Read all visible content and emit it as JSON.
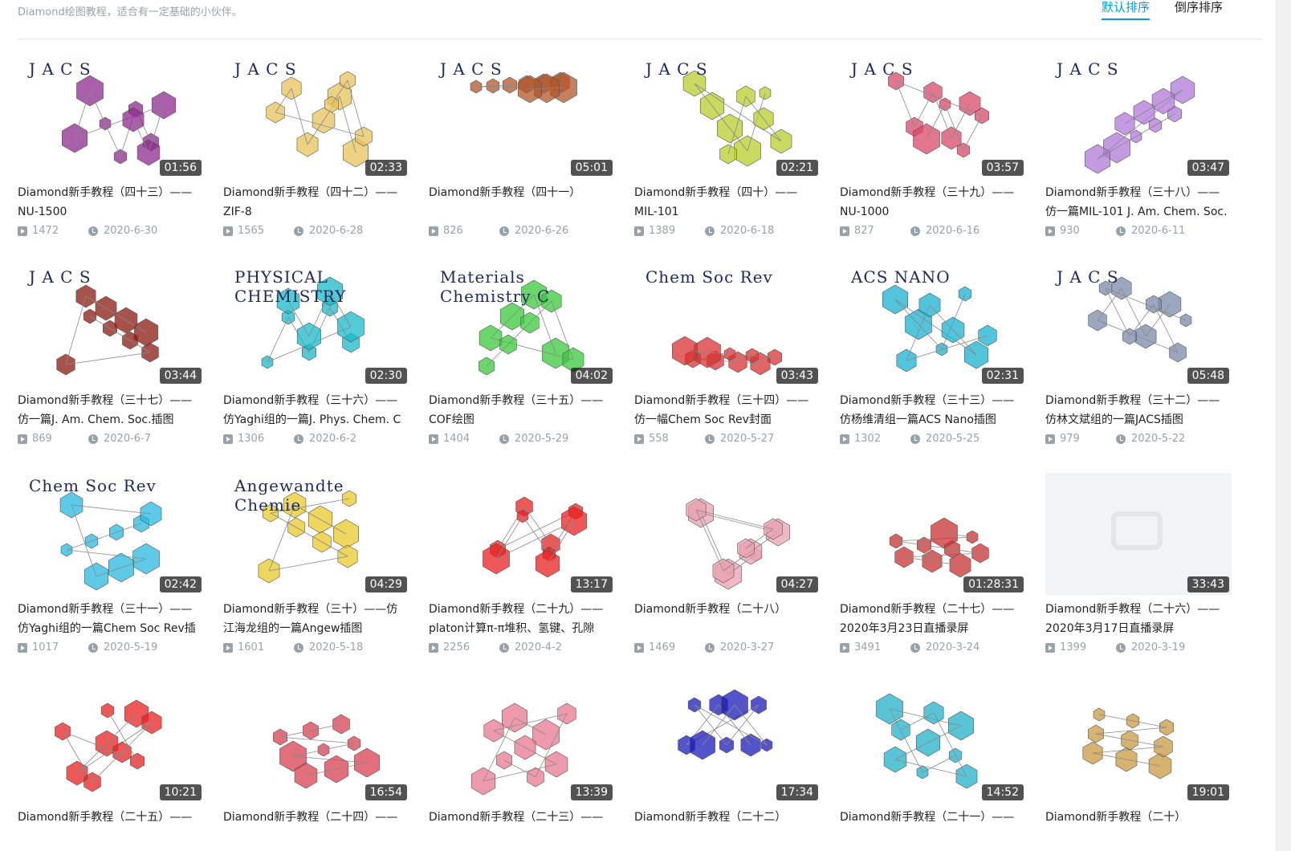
{
  "header": {
    "description": "Diamond绘图教程，适合有一定基础的小伙伴。",
    "sort_default": "默认排序",
    "sort_reverse": "倒序排序"
  },
  "colors": {
    "accent": "#00a1d6",
    "meta_gray": "#99a2aa",
    "duration_bg": "#000000"
  },
  "videos": [
    {
      "thumb_label": "J A C S",
      "duration": "01:56",
      "title_l1": "Diamond新手教程（四十三）——",
      "title_l2": "NU-1500",
      "views": "1472",
      "date": "2020-6-30",
      "accent": "#8e2a8e"
    },
    {
      "thumb_label": "J A C S",
      "duration": "02:33",
      "title_l1": "Diamond新手教程（四十二）——",
      "title_l2": "ZIF-8",
      "views": "1565",
      "date": "2020-6-28",
      "accent": "#e8c35a"
    },
    {
      "thumb_label": "J A C S",
      "duration": "05:01",
      "title_l1": "Diamond新手教程（四十一）",
      "title_l2": "",
      "views": "826",
      "date": "2020-6-26",
      "accent": "#b0562a"
    },
    {
      "thumb_label": "J A C S",
      "duration": "02:21",
      "title_l1": "Diamond新手教程（四十）——",
      "title_l2": "MIL-101",
      "views": "1389",
      "date": "2020-6-18",
      "accent": "#b8cc2a"
    },
    {
      "thumb_label": "J A C S",
      "duration": "03:57",
      "title_l1": "Diamond新手教程（三十九）——",
      "title_l2": "NU-1000",
      "views": "827",
      "date": "2020-6-16",
      "accent": "#d8486a"
    },
    {
      "thumb_label": "J A C S",
      "duration": "03:47",
      "title_l1": "Diamond新手教程（三十八）——",
      "title_l2": "仿一篇MIL-101 J. Am. Chem. Soc.",
      "views": "930",
      "date": "2020-6-11",
      "accent": "#b07ad8"
    },
    {
      "thumb_label": "J A C S",
      "duration": "03:44",
      "title_l1": "Diamond新手教程（三十七）——",
      "title_l2": "仿一篇J. Am. Chem. Soc.插图",
      "views": "869",
      "date": "2020-6-7",
      "accent": "#8a1a10"
    },
    {
      "thumb_label": "PHYSICAL CHEMISTRY",
      "duration": "02:30",
      "title_l1": "Diamond新手教程（三十六）——",
      "title_l2": "仿Yaghi组的一篇J. Phys. Chem. C",
      "views": "1306",
      "date": "2020-6-2",
      "accent": "#1ab8c8"
    },
    {
      "thumb_label": "Materials Chemistry C",
      "duration": "04:02",
      "title_l1": "Diamond新手教程（三十五）——",
      "title_l2": "COF绘图",
      "views": "1404",
      "date": "2020-5-29",
      "accent": "#38c83a"
    },
    {
      "thumb_label": "Chem Soc Rev",
      "duration": "03:43",
      "title_l1": "Diamond新手教程（三十四）——",
      "title_l2": "仿一幅Chem Soc Rev封面",
      "views": "558",
      "date": "2020-5-27",
      "accent": "#d83030"
    },
    {
      "thumb_label": "ACS NANO",
      "duration": "02:31",
      "title_l1": "Diamond新手教程（三十三）——",
      "title_l2": "仿杨维清组一篇ACS Nano插图",
      "views": "1302",
      "date": "2020-5-25",
      "accent": "#18b0d0"
    },
    {
      "thumb_label": "J A C S",
      "duration": "05:48",
      "title_l1": "Diamond新手教程（三十二）——",
      "title_l2": "仿林文斌组的一篇JACS插图",
      "views": "979",
      "date": "2020-5-22",
      "accent": "#7a8aa8"
    },
    {
      "thumb_label": "Chem Soc Rev",
      "duration": "02:42",
      "title_l1": "Diamond新手教程（三十一）——",
      "title_l2": "仿Yaghi组的一篇Chem Soc Rev插",
      "views": "1017",
      "date": "2020-5-19",
      "accent": "#28b8e0"
    },
    {
      "thumb_label": "Angewandte Chemie",
      "duration": "04:29",
      "title_l1": "Diamond新手教程（三十）——仿",
      "title_l2": "江海龙组的一篇Angew插图",
      "views": "1601",
      "date": "2020-5-18",
      "accent": "#e8c82a"
    },
    {
      "thumb_label": "",
      "duration": "13:17",
      "title_l1": "Diamond新手教程（二十九）——",
      "title_l2": "platon计算π-π堆积、氢键、孔隙",
      "views": "2256",
      "date": "2020-4-2",
      "accent": "#e82020"
    },
    {
      "thumb_label": "",
      "duration": "04:27",
      "title_l1": "Diamond新手教程（二十八）",
      "title_l2": "",
      "views": "1469",
      "date": "2020-3-27",
      "accent": "#e8a0b0"
    },
    {
      "thumb_label": "",
      "duration": "01:28:31",
      "title_l1": "Diamond新手教程（二十七）——",
      "title_l2": "2020年3月23日直播录屏",
      "views": "3491",
      "date": "2020-3-24",
      "accent": "#c83030"
    },
    {
      "thumb_label": "",
      "duration": "33:43",
      "title_l1": "Diamond新手教程（二十六）——",
      "title_l2": "2020年3月17日直播录屏",
      "views": "1399",
      "date": "2020-3-19",
      "accent": "#e3e5e7"
    },
    {
      "thumb_label": "",
      "duration": "10:21",
      "title_l1": "Diamond新手教程（二十五）——",
      "title_l2": "",
      "views": "",
      "date": "",
      "accent": "#e82020"
    },
    {
      "thumb_label": "",
      "duration": "16:54",
      "title_l1": "Diamond新手教程（二十四）——",
      "title_l2": "",
      "views": "",
      "date": "",
      "accent": "#d84050"
    },
    {
      "thumb_label": "",
      "duration": "13:39",
      "title_l1": "Diamond新手教程（二十三）——",
      "title_l2": "",
      "views": "",
      "date": "",
      "accent": "#e87890"
    },
    {
      "thumb_label": "",
      "duration": "17:34",
      "title_l1": "Diamond新手教程（二十二）",
      "title_l2": "",
      "views": "",
      "date": "",
      "accent": "#1a1ab8"
    },
    {
      "thumb_label": "",
      "duration": "14:52",
      "title_l1": "Diamond新手教程（二十一）——",
      "title_l2": "",
      "views": "",
      "date": "",
      "accent": "#20b0c8"
    },
    {
      "thumb_label": "",
      "duration": "19:01",
      "title_l1": "Diamond新手教程（二十）",
      "title_l2": "",
      "views": "",
      "date": "",
      "accent": "#c89a40"
    }
  ]
}
